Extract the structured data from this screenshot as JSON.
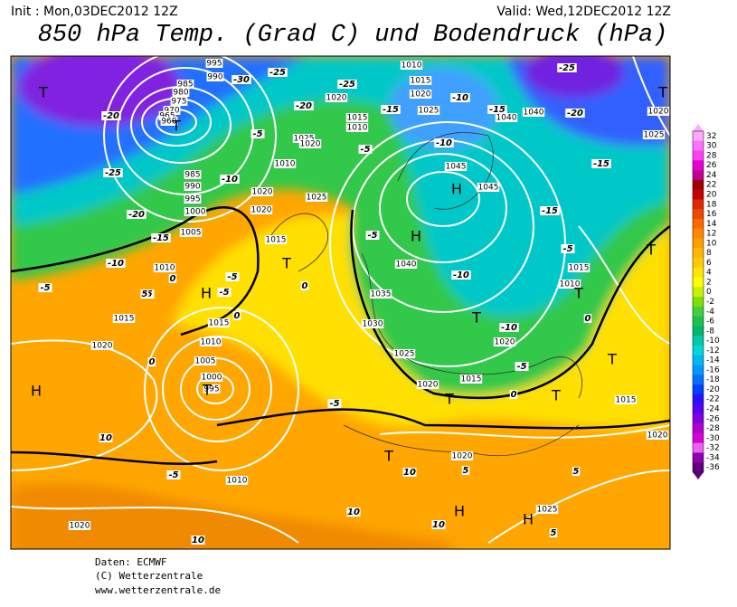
{
  "header": {
    "init": "Init : Mon,03DEC2012 12Z",
    "valid": "Valid: Wed,12DEC2012 12Z",
    "title": "850 hPa Temp. (Grad C) und Bodendruck (hPa)"
  },
  "colorbar": {
    "labels": [
      32,
      30,
      28,
      26,
      24,
      22,
      20,
      18,
      16,
      14,
      12,
      10,
      8,
      6,
      4,
      2,
      0,
      -2,
      -4,
      -6,
      -8,
      -10,
      -12,
      -14,
      -16,
      -18,
      -20,
      -22,
      -24,
      -26,
      -28,
      -30,
      -32,
      -34,
      -36
    ],
    "colors": [
      "#ffa8ff",
      "#ff70ff",
      "#ff40f0",
      "#e800d0",
      "#c00090",
      "#a00000",
      "#c80000",
      "#e02800",
      "#f04800",
      "#ff6800",
      "#ff8800",
      "#ffa000",
      "#ffb800",
      "#ffcc00",
      "#ffe600",
      "#ffff00",
      "#c8f000",
      "#80e000",
      "#40d040",
      "#20c050",
      "#00b868",
      "#00c8a8",
      "#00d8d8",
      "#00b8f0",
      "#0098ff",
      "#0070ff",
      "#0040ff",
      "#2810ff",
      "#5800f0",
      "#8000e0",
      "#b000d0",
      "#d800d8",
      "#f060f0",
      "#9000b0",
      "#600080"
    ]
  },
  "map": {
    "pressure_centers": [
      "T",
      "T",
      "H",
      "H",
      "T",
      "H",
      "T",
      "H",
      "T",
      "T",
      "T",
      "H",
      "H",
      "T",
      "T",
      "T",
      "T",
      "T"
    ],
    "isobar_labels": [
      "995",
      "990",
      "985",
      "980",
      "975",
      "970",
      "965",
      "960",
      "985",
      "990",
      "995",
      "1000",
      "1005",
      "1010",
      "1015",
      "1020",
      "1015",
      "1010",
      "1005",
      "1000",
      "995",
      "1010",
      "1020",
      "1020",
      "1020",
      "1025",
      "1015",
      "1010",
      "1015",
      "1020",
      "1025",
      "1040",
      "1040",
      "1045",
      "1045",
      "1040",
      "1035",
      "1030",
      "1025",
      "1020",
      "1015",
      "1020",
      "1015",
      "1010",
      "1015",
      "1020",
      "1020",
      "1025",
      "1020",
      "1025",
      "1020",
      "1015",
      "1010",
      "1025",
      "1020",
      "1010"
    ],
    "temperature_labels": [
      "-25",
      "-30",
      "-25",
      "-20",
      "-15",
      "-20",
      "-25",
      "-20",
      "-15",
      "-10",
      "-5",
      "-5",
      "0",
      "-5",
      "-5",
      "0",
      "0",
      "-5",
      "-10",
      "-5",
      "-10",
      "-10",
      "-15",
      "-20",
      "-25",
      "-15",
      "-15",
      "-5",
      "-10",
      "-5",
      "-10",
      "-5",
      "0",
      "0",
      "0",
      "-5",
      "5",
      "-5",
      "10",
      "10",
      "5",
      "5",
      "10",
      "10",
      "10",
      "5"
    ]
  },
  "footer": {
    "source": "Daten: ECMWF",
    "copyright": "(C) Wetterzentrale",
    "url": "www.wetterzentrale.de"
  }
}
